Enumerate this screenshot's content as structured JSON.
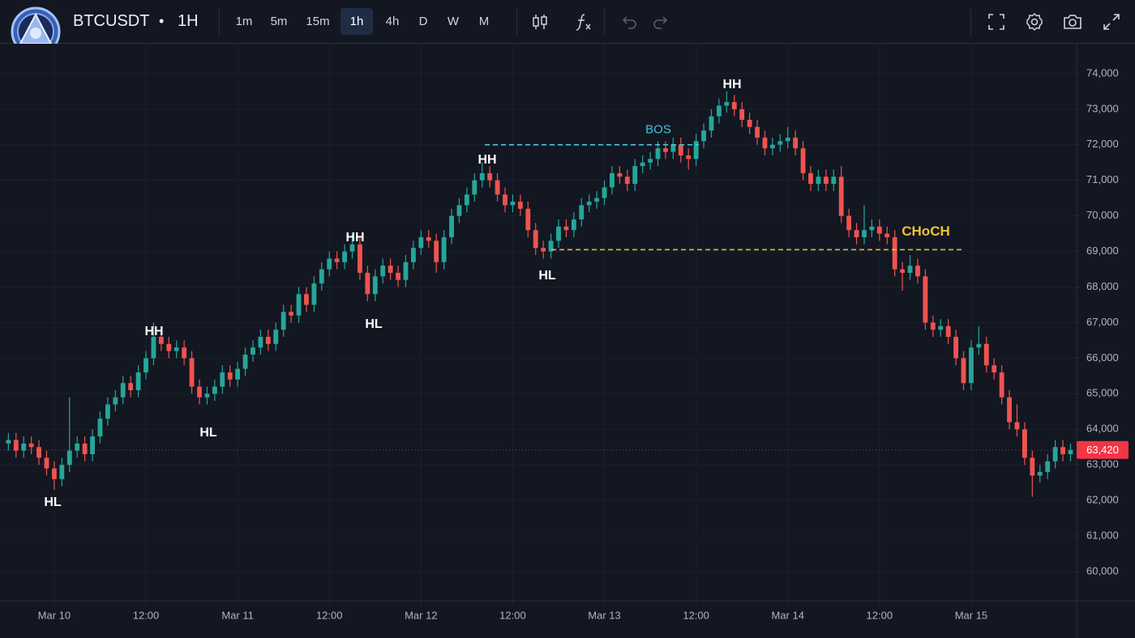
{
  "header": {
    "symbol": "BTCUSDT",
    "separator": "•",
    "interval": "1H",
    "timeframes": [
      "1m",
      "5m",
      "15m",
      "1h",
      "4h",
      "D",
      "W",
      "M"
    ]
  },
  "chart_data": {
    "type": "candlestick",
    "x": [
      -6,
      -5,
      -4,
      -3,
      -2,
      -1,
      0,
      1,
      2,
      3,
      4,
      5,
      6,
      7,
      8,
      9,
      10,
      11,
      12,
      13,
      14,
      15,
      16,
      17,
      18,
      19,
      20,
      21,
      22,
      23,
      24,
      25,
      26,
      27,
      28,
      29,
      30,
      31,
      32,
      33,
      34,
      35,
      36,
      37,
      38,
      39,
      40,
      41,
      42,
      43,
      44,
      45,
      46,
      47,
      48,
      49,
      50,
      51,
      52,
      53,
      54,
      55,
      56,
      57,
      58,
      59,
      60,
      61,
      62,
      63,
      64,
      65,
      66,
      67,
      68,
      69,
      70,
      71,
      72,
      73,
      74,
      75,
      76,
      77,
      78,
      79,
      80,
      81,
      82,
      83,
      84,
      85,
      86,
      87,
      88,
      89,
      90,
      91,
      92,
      93,
      94,
      95,
      96,
      97,
      98,
      99,
      100,
      101,
      102,
      103,
      104,
      105,
      106,
      107,
      108,
      109,
      110,
      111,
      112,
      113,
      114,
      115,
      116,
      117,
      118,
      119,
      120,
      121,
      122,
      123,
      124,
      125,
      126,
      127,
      128,
      129,
      130,
      131,
      132,
      133
    ],
    "candles": [
      [
        63600,
        63900,
        63400,
        63700
      ],
      [
        63700,
        63900,
        63200,
        63400
      ],
      [
        63400,
        63800,
        63200,
        63600
      ],
      [
        63600,
        63800,
        63300,
        63500
      ],
      [
        63500,
        63700,
        63000,
        63200
      ],
      [
        63200,
        63400,
        62700,
        62900
      ],
      [
        62900,
        63100,
        62300,
        62600
      ],
      [
        62600,
        63200,
        62400,
        63000
      ],
      [
        63000,
        64900,
        62800,
        63400
      ],
      [
        63400,
        63800,
        63200,
        63600
      ],
      [
        63600,
        63800,
        63100,
        63300
      ],
      [
        63300,
        64000,
        63100,
        63800
      ],
      [
        63800,
        64500,
        63600,
        64300
      ],
      [
        64300,
        64900,
        64100,
        64700
      ],
      [
        64700,
        65100,
        64500,
        64900
      ],
      [
        64900,
        65500,
        64700,
        65300
      ],
      [
        65300,
        65500,
        64900,
        65100
      ],
      [
        65100,
        65800,
        64900,
        65600
      ],
      [
        65600,
        66200,
        65400,
        66000
      ],
      [
        66000,
        67000,
        65800,
        66600
      ],
      [
        66600,
        66800,
        66200,
        66400
      ],
      [
        66400,
        66600,
        66000,
        66200
      ],
      [
        66200,
        66500,
        66000,
        66300
      ],
      [
        66300,
        66500,
        65800,
        66000
      ],
      [
        66000,
        66200,
        65000,
        65200
      ],
      [
        65200,
        65400,
        64700,
        64900
      ],
      [
        64900,
        65200,
        64700,
        65000
      ],
      [
        65000,
        65400,
        64800,
        65200
      ],
      [
        65200,
        65800,
        65000,
        65600
      ],
      [
        65600,
        65800,
        65200,
        65400
      ],
      [
        65400,
        65900,
        65200,
        65700
      ],
      [
        65700,
        66300,
        65500,
        66100
      ],
      [
        66100,
        66500,
        65900,
        66300
      ],
      [
        66300,
        66800,
        66100,
        66600
      ],
      [
        66600,
        66800,
        66200,
        66400
      ],
      [
        66400,
        67000,
        66200,
        66800
      ],
      [
        66800,
        67500,
        66600,
        67300
      ],
      [
        67300,
        67500,
        67000,
        67200
      ],
      [
        67200,
        68000,
        67000,
        67800
      ],
      [
        67800,
        68000,
        67300,
        67500
      ],
      [
        67500,
        68300,
        67300,
        68100
      ],
      [
        68100,
        68700,
        67900,
        68500
      ],
      [
        68500,
        69000,
        68300,
        68800
      ],
      [
        68800,
        69000,
        68500,
        68700
      ],
      [
        68700,
        69200,
        68500,
        69000
      ],
      [
        69000,
        69500,
        68800,
        69200
      ],
      [
        69200,
        69400,
        68200,
        68400
      ],
      [
        68400,
        68600,
        67600,
        67800
      ],
      [
        67800,
        68500,
        67600,
        68300
      ],
      [
        68300,
        68800,
        68100,
        68600
      ],
      [
        68600,
        68800,
        68200,
        68400
      ],
      [
        68400,
        68600,
        68000,
        68200
      ],
      [
        68200,
        68900,
        68000,
        68700
      ],
      [
        68700,
        69300,
        68500,
        69100
      ],
      [
        69100,
        69600,
        68900,
        69400
      ],
      [
        69400,
        69600,
        69100,
        69300
      ],
      [
        69300,
        69500,
        68400,
        68700
      ],
      [
        68700,
        69600,
        68500,
        69400
      ],
      [
        69400,
        70200,
        69200,
        70000
      ],
      [
        70000,
        70500,
        69800,
        70300
      ],
      [
        70300,
        70800,
        70100,
        70600
      ],
      [
        70600,
        71200,
        70400,
        71000
      ],
      [
        71000,
        71500,
        70800,
        71200
      ],
      [
        71200,
        71400,
        70800,
        71000
      ],
      [
        71000,
        71200,
        70400,
        70600
      ],
      [
        70600,
        70800,
        70100,
        70300
      ],
      [
        70300,
        70600,
        70100,
        70400
      ],
      [
        70400,
        70600,
        70000,
        70200
      ],
      [
        70200,
        70400,
        69400,
        69600
      ],
      [
        69600,
        69800,
        68900,
        69100
      ],
      [
        69100,
        69300,
        68800,
        69000
      ],
      [
        69000,
        69500,
        68800,
        69300
      ],
      [
        69300,
        69900,
        69100,
        69700
      ],
      [
        69700,
        69900,
        69400,
        69600
      ],
      [
        69600,
        70100,
        69400,
        69900
      ],
      [
        69900,
        70500,
        69700,
        70300
      ],
      [
        70300,
        70600,
        70100,
        70400
      ],
      [
        70400,
        70700,
        70200,
        70500
      ],
      [
        70500,
        71000,
        70300,
        70800
      ],
      [
        70800,
        71400,
        70600,
        71200
      ],
      [
        71200,
        71400,
        70900,
        71100
      ],
      [
        71100,
        71300,
        70700,
        70900
      ],
      [
        70900,
        71600,
        70700,
        71400
      ],
      [
        71400,
        71700,
        71200,
        71500
      ],
      [
        71500,
        71800,
        71300,
        71600
      ],
      [
        71600,
        72100,
        71400,
        71900
      ],
      [
        71900,
        72100,
        71600,
        71800
      ],
      [
        71800,
        72200,
        71600,
        72000
      ],
      [
        72000,
        72200,
        71500,
        71700
      ],
      [
        71700,
        71900,
        71300,
        71600
      ],
      [
        71600,
        72300,
        71400,
        72100
      ],
      [
        72100,
        72600,
        71900,
        72400
      ],
      [
        72400,
        73000,
        72200,
        72800
      ],
      [
        72800,
        73300,
        72600,
        73100
      ],
      [
        73100,
        73500,
        72900,
        73200
      ],
      [
        73200,
        73400,
        72800,
        73000
      ],
      [
        73000,
        73200,
        72500,
        72700
      ],
      [
        72700,
        72900,
        72300,
        72500
      ],
      [
        72500,
        72700,
        72000,
        72200
      ],
      [
        72200,
        72400,
        71700,
        71900
      ],
      [
        71900,
        72200,
        71700,
        72000
      ],
      [
        72000,
        72300,
        71800,
        72100
      ],
      [
        72100,
        72500,
        71900,
        72200
      ],
      [
        72200,
        72400,
        71700,
        71900
      ],
      [
        71900,
        72100,
        71000,
        71200
      ],
      [
        71200,
        71400,
        70700,
        70900
      ],
      [
        70900,
        71300,
        70700,
        71100
      ],
      [
        71100,
        71300,
        70700,
        70900
      ],
      [
        70900,
        71300,
        70700,
        71100
      ],
      [
        71100,
        71400,
        69800,
        70000
      ],
      [
        70000,
        70200,
        69400,
        69600
      ],
      [
        69600,
        69800,
        69200,
        69400
      ],
      [
        69400,
        70300,
        69200,
        69600
      ],
      [
        69600,
        69900,
        69400,
        69700
      ],
      [
        69700,
        69900,
        69300,
        69500
      ],
      [
        69500,
        69700,
        69200,
        69400
      ],
      [
        69400,
        69600,
        68300,
        68500
      ],
      [
        68500,
        68700,
        67900,
        68400
      ],
      [
        68400,
        68900,
        68200,
        68600
      ],
      [
        68600,
        68800,
        68100,
        68300
      ],
      [
        68300,
        68500,
        66800,
        67000
      ],
      [
        67000,
        67200,
        66600,
        66800
      ],
      [
        66800,
        67100,
        66600,
        66900
      ],
      [
        66900,
        67100,
        66400,
        66600
      ],
      [
        66600,
        66800,
        65800,
        66000
      ],
      [
        66000,
        66200,
        65100,
        65300
      ],
      [
        65300,
        66500,
        65100,
        66300
      ],
      [
        66300,
        66900,
        66100,
        66400
      ],
      [
        66400,
        66600,
        65600,
        65800
      ],
      [
        65800,
        66000,
        65400,
        65600
      ],
      [
        65600,
        65800,
        64700,
        64900
      ],
      [
        64900,
        65100,
        64000,
        64200
      ],
      [
        64200,
        64700,
        63800,
        64000
      ],
      [
        64000,
        64200,
        63000,
        63200
      ],
      [
        63200,
        63400,
        62100,
        62700
      ],
      [
        62700,
        63000,
        62500,
        62800
      ],
      [
        62800,
        63300,
        62600,
        63100
      ],
      [
        63100,
        63700,
        62900,
        63500
      ],
      [
        63500,
        63700,
        63100,
        63300
      ],
      [
        63300,
        63600,
        63100,
        63420
      ]
    ],
    "up_color": "#26a69a",
    "down_color": "#ef5350",
    "xlim": [
      -7.1,
      133.8
    ],
    "xticks": [
      {
        "value": 0,
        "label": "Mar 10"
      },
      {
        "value": 12,
        "label": "12:00"
      },
      {
        "value": 24,
        "label": "Mar 11"
      },
      {
        "value": 36,
        "label": "12:00"
      },
      {
        "value": 48,
        "label": "Mar 12"
      },
      {
        "value": 60,
        "label": "12:00"
      },
      {
        "value": 72,
        "label": "Mar 13"
      },
      {
        "value": 84,
        "label": "12:00"
      },
      {
        "value": 96,
        "label": "Mar 14"
      },
      {
        "value": 108,
        "label": "12:00"
      },
      {
        "value": 120,
        "label": "Mar 15"
      }
    ],
    "ylim": [
      59180,
      74840
    ],
    "yticks": [
      {
        "value": 60000,
        "label": "60,000"
      },
      {
        "value": 61000,
        "label": "61,000"
      },
      {
        "value": 62000,
        "label": "62,000"
      },
      {
        "value": 63000,
        "label": "63,000"
      },
      {
        "value": 64000,
        "label": "64,000"
      },
      {
        "value": 65000,
        "label": "65,000"
      },
      {
        "value": 66000,
        "label": "66,000"
      },
      {
        "value": 67000,
        "label": "67,000"
      },
      {
        "value": 68000,
        "label": "68,000"
      },
      {
        "value": 69000,
        "label": "69,000"
      },
      {
        "value": 70000,
        "label": "70,000"
      },
      {
        "value": 71000,
        "label": "71,000"
      },
      {
        "value": 72000,
        "label": "72,000"
      },
      {
        "value": 73000,
        "label": "73,000"
      },
      {
        "value": 74000,
        "label": "74,000"
      }
    ],
    "grid": true,
    "annotations": [
      "HL",
      "HH",
      "HL",
      "HH",
      "HL",
      "HH",
      "HL",
      "HH"
    ],
    "levels": [
      {
        "label": "BOS",
        "value": 72000,
        "color": "#3ec6e0"
      },
      {
        "label": "CHoCH",
        "value": 69050,
        "color": "#f2c230"
      }
    ],
    "last_price": 63420,
    "last_price_label": "63,420"
  }
}
